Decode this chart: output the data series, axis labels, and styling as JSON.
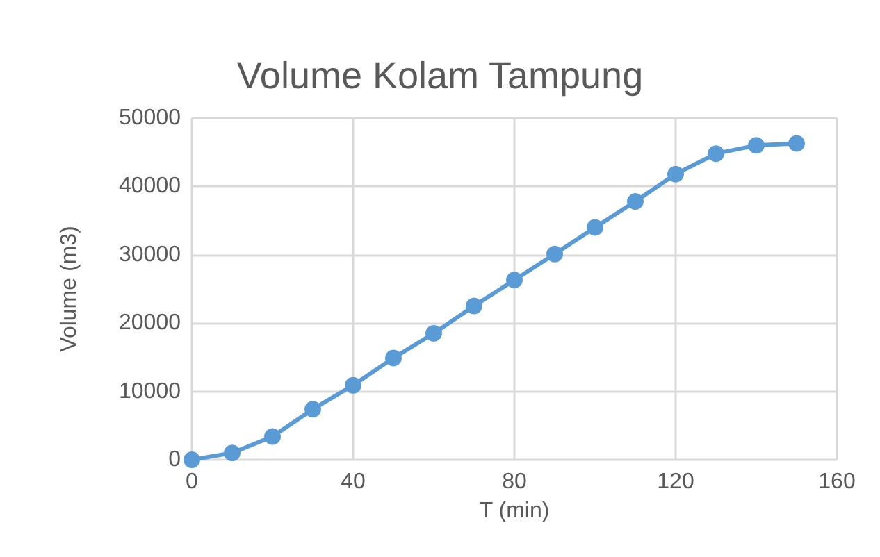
{
  "chart_data": {
    "type": "line",
    "title": "Volume Kolam Tampung",
    "xlabel": "T (min)",
    "ylabel": "Volume (m3)",
    "x": [
      0,
      10,
      20,
      30,
      40,
      50,
      60,
      70,
      80,
      90,
      100,
      110,
      120,
      130,
      140,
      150
    ],
    "series": [
      {
        "color": "#5b9bd5",
        "values": [
          0,
          1000,
          3400,
          7400,
          10900,
          14900,
          18500,
          22500,
          26300,
          30100,
          34000,
          37800,
          41800,
          44800,
          46000,
          46300
        ]
      }
    ],
    "xlim": [
      0,
      160
    ],
    "xticks": [
      0,
      40,
      80,
      120,
      160
    ],
    "ylim": [
      0,
      50000
    ],
    "yticks": [
      0,
      10000,
      20000,
      30000,
      40000,
      50000
    ],
    "grid": true,
    "marker": "circle",
    "line_style": "solid"
  }
}
